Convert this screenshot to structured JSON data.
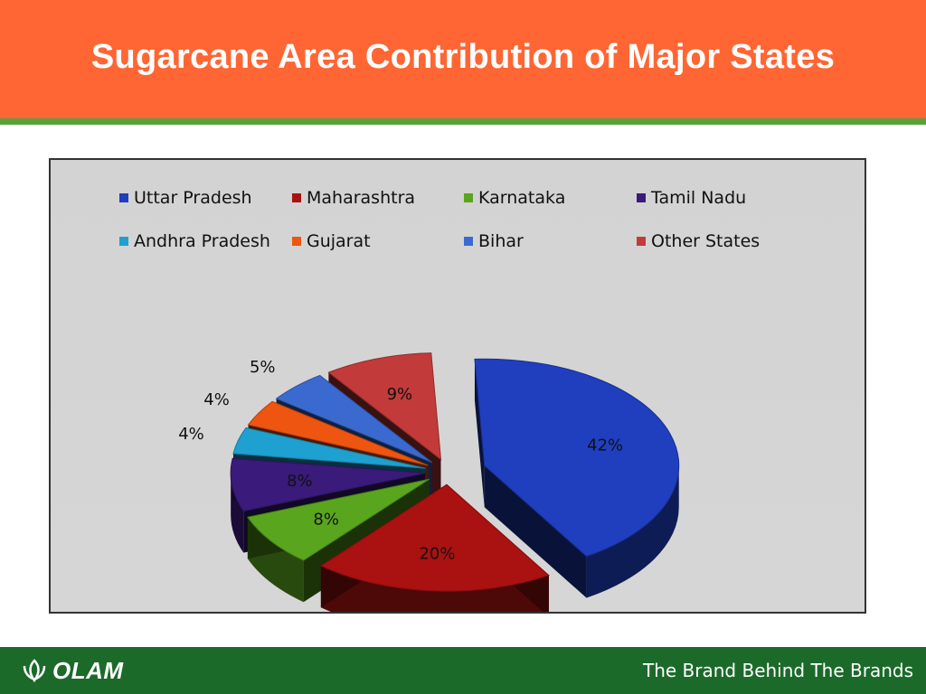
{
  "header": {
    "title": "Sugarcane Area Contribution of Major States"
  },
  "chart_data": {
    "type": "pie",
    "title": "",
    "categories": [
      "Uttar Pradesh",
      "Maharashtra",
      "Karnataka",
      "Tamil Nadu",
      "Andhra Pradesh",
      "Gujarat",
      "Bihar",
      "Other States"
    ],
    "values": [
      42,
      20,
      8,
      8,
      4,
      4,
      5,
      9
    ],
    "labels": [
      "42%",
      "20%",
      "8%",
      "8%",
      "4%",
      "4%",
      "5%",
      "9%"
    ],
    "colors": [
      "#1f3fbf",
      "#aa1111",
      "#5aa51e",
      "#3a1a7a",
      "#1ea0d0",
      "#ee5511",
      "#3a6ad0",
      "#c23a3a"
    ],
    "exploded": true,
    "three_d": true,
    "legend_position": "top"
  },
  "footer": {
    "logo_text": "OLAM",
    "logo_icon": "leaf-icon",
    "tagline": "The Brand Behind The Brands"
  },
  "colors": {
    "header_bg": "#ff6633",
    "footer_bg": "#1b6a2a",
    "chart_bg": "#d3d3d3"
  }
}
